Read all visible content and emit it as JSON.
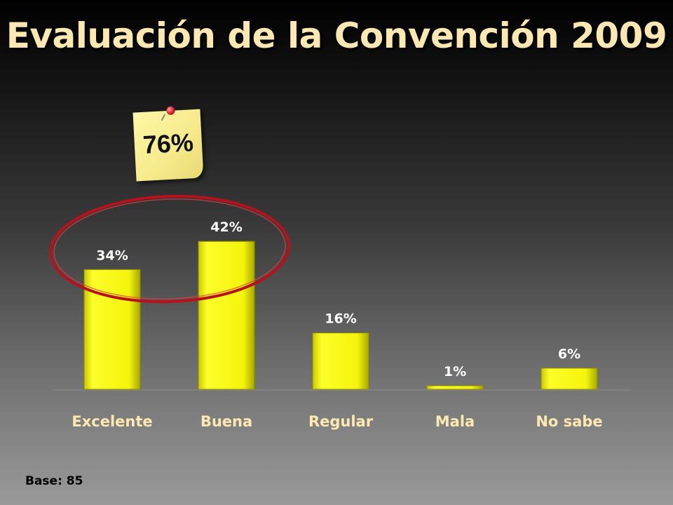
{
  "title": "Evaluación de la Convención 2009",
  "callout": {
    "text": "76%",
    "icon": "sticky-note-with-pushpin"
  },
  "footnote": "Base: 85",
  "colors": {
    "bar": "#f2f20a",
    "title": "#fde8b2",
    "highlight_ellipse": "#b5121b",
    "note": "#f5e98a"
  },
  "chart_data": {
    "type": "bar",
    "categories": [
      "Excelente",
      "Buena",
      "Regular",
      "Mala",
      "No sabe"
    ],
    "values": [
      34,
      42,
      16,
      1,
      6
    ],
    "value_labels": [
      "34%",
      "42%",
      "16%",
      "1%",
      "6%"
    ],
    "unit": "%",
    "ylim": [
      0,
      50
    ],
    "grid": false,
    "legend": "none",
    "highlighted_categories": [
      "Excelente",
      "Buena"
    ]
  }
}
